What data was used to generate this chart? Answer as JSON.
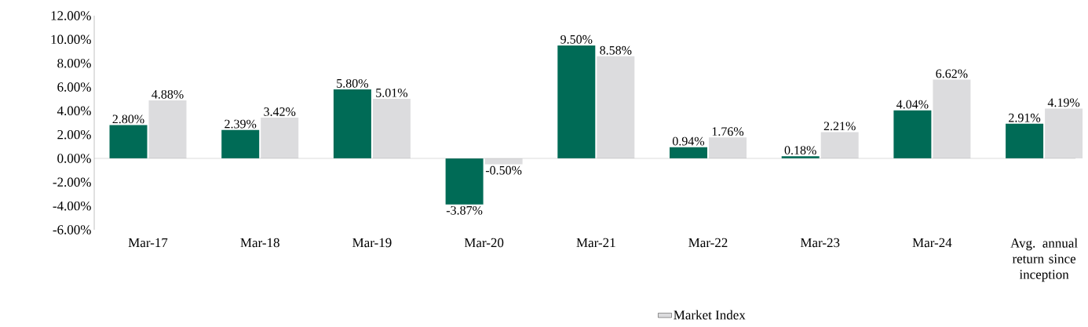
{
  "chart_data": {
    "type": "bar",
    "categories": [
      "Mar-17",
      "Mar-18",
      "Mar-19",
      "Mar-20",
      "Mar-21",
      "Mar-22",
      "Mar-23",
      "Mar-24",
      "Avg. annual return since inception"
    ],
    "series": [
      {
        "color": "#006b56",
        "values": [
          2.8,
          2.39,
          5.8,
          -3.87,
          9.5,
          0.94,
          0.18,
          4.04,
          2.91
        ],
        "value_labels": [
          "2.80%",
          "2.39%",
          "5.80%",
          "-3.87%",
          "9.50%",
          "0.94%",
          "0.18%",
          "4.04%",
          "2.91%"
        ]
      },
      {
        "name": "Market Index",
        "color": "#dcdcde",
        "values": [
          4.88,
          3.42,
          5.01,
          -0.5,
          8.58,
          1.76,
          2.21,
          6.62,
          4.19
        ],
        "value_labels": [
          "4.88%",
          "3.42%",
          "5.01%",
          "-0.50%",
          "8.58%",
          "1.76%",
          "2.21%",
          "6.62%",
          "4.19%"
        ]
      }
    ],
    "ylim": [
      -6,
      12
    ],
    "yticks": [
      {
        "value": -6,
        "label": "-6.00%"
      },
      {
        "value": -4,
        "label": "-4.00%"
      },
      {
        "value": -2,
        "label": "-2.00%"
      },
      {
        "value": 0,
        "label": "0.00%"
      },
      {
        "value": 2,
        "label": "2.00%"
      },
      {
        "value": 4,
        "label": "4.00%"
      },
      {
        "value": 6,
        "label": "6.00%"
      },
      {
        "value": 8,
        "label": "8.00%"
      },
      {
        "value": 10,
        "label": "10.00%"
      },
      {
        "value": 12,
        "label": "12.00%"
      }
    ],
    "ref_lines": [
      {
        "axis": "y",
        "value": 0,
        "color": "#a6a6a6"
      }
    ],
    "legend": "bottom"
  }
}
